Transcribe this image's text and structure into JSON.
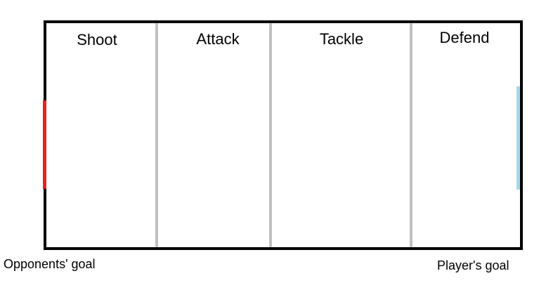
{
  "zones": [
    {
      "label": "Shoot"
    },
    {
      "label": "Attack"
    },
    {
      "label": "Tackle"
    },
    {
      "label": "Defend"
    }
  ],
  "goals": {
    "opponents": {
      "label": "Opponents' goal",
      "color": "#e8202a"
    },
    "player": {
      "label": "Player's goal",
      "color": "#a8d8e8"
    }
  },
  "colors": {
    "border": "#000000",
    "divider": "#c0c0c0"
  }
}
